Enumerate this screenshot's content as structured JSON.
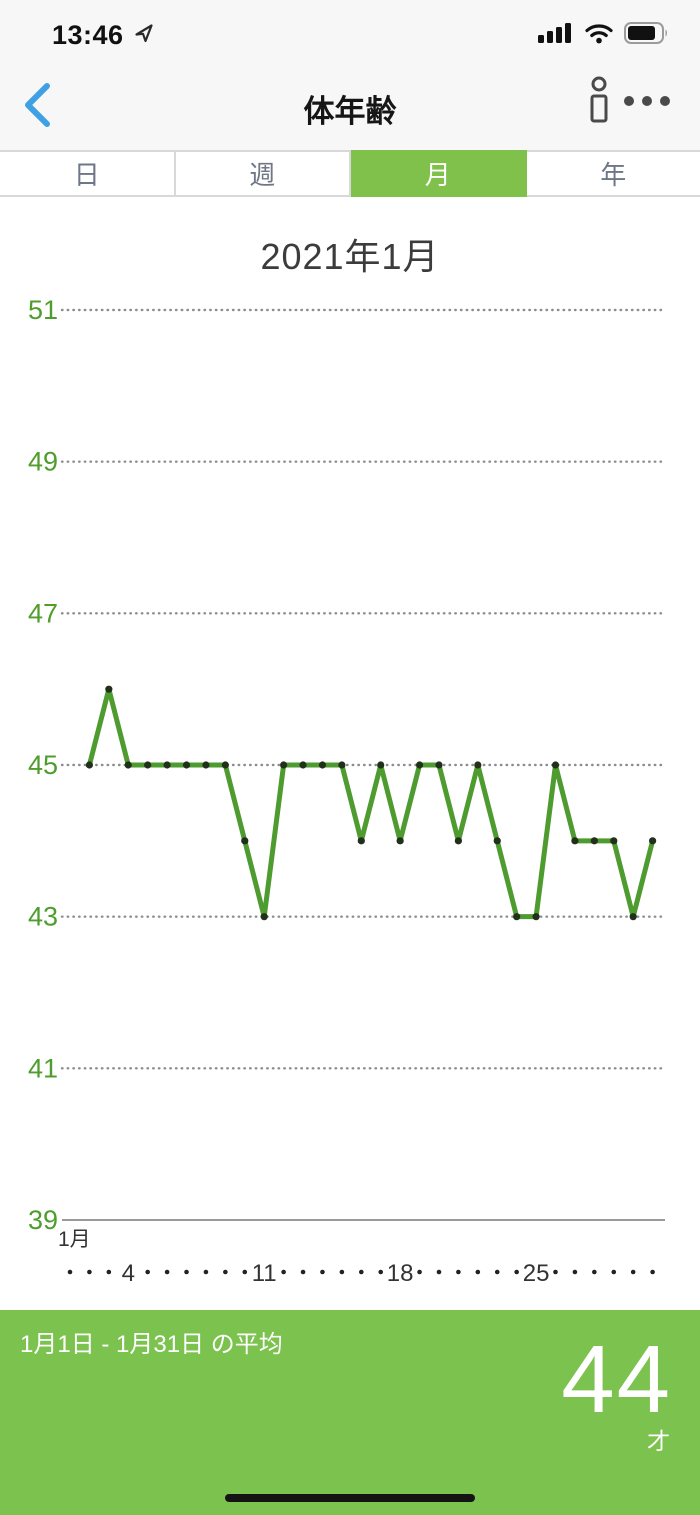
{
  "status_bar": {
    "time": "13:46"
  },
  "header": {
    "title": "体年齢"
  },
  "tabs": [
    {
      "label": "日",
      "selected": false
    },
    {
      "label": "週",
      "selected": false
    },
    {
      "label": "月",
      "selected": true
    },
    {
      "label": "年",
      "selected": false
    }
  ],
  "chart_data": {
    "type": "line",
    "title": "2021年1月",
    "x_unit_label": "1月",
    "x_range": [
      1,
      31
    ],
    "x_tick_numbers": [
      4,
      11,
      18,
      25
    ],
    "x": [
      2,
      3,
      4,
      5,
      6,
      7,
      8,
      9,
      10,
      11,
      12,
      13,
      14,
      15,
      16,
      17,
      18,
      19,
      20,
      21,
      22,
      23,
      24,
      25,
      26,
      27,
      28,
      29,
      30,
      31
    ],
    "values": [
      45,
      46,
      45,
      45,
      45,
      45,
      45,
      45,
      44,
      43,
      45,
      45,
      45,
      45,
      44,
      45,
      44,
      45,
      45,
      44,
      45,
      44,
      43,
      43,
      45,
      44,
      44,
      44,
      43,
      44
    ],
    "ylim": [
      39,
      51
    ],
    "yticks": [
      51,
      49,
      47,
      45,
      43,
      41,
      39
    ],
    "grid": "dotted horizontal lines, solid baseline at 39",
    "legend": "none",
    "ylabel": "",
    "xlabel": "1月",
    "colors": {
      "line": "#4e9b2f",
      "point": "#20301a",
      "axis_label": "#4f9d2c",
      "grid": "#8d8d8d",
      "baseline": "#9a9a9a",
      "tick_text": "#333333"
    }
  },
  "summary": {
    "label": "1月1日 - 1月31日 の平均",
    "value": "44",
    "unit": "才"
  },
  "colors": {
    "accent_green": "#7cc24e",
    "tab_selected_green": "#80c14b",
    "back_blue": "#3fa0e4"
  }
}
